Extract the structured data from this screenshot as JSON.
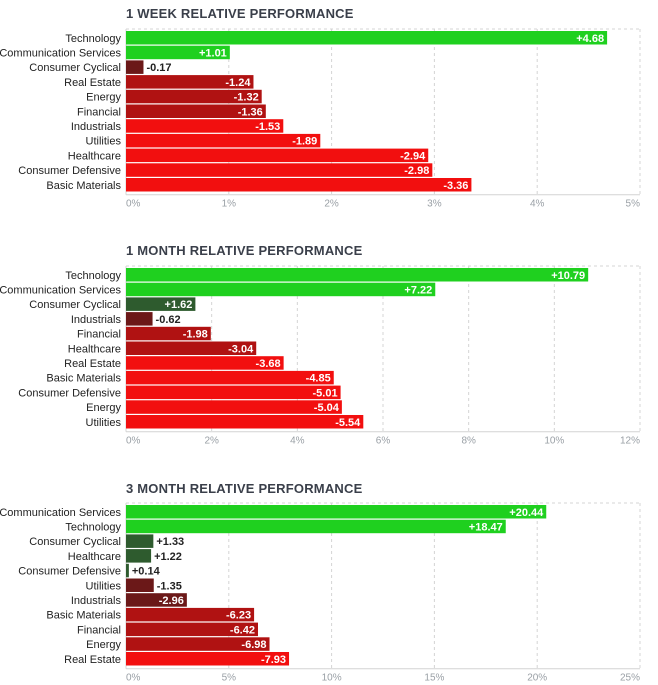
{
  "chart_data": [
    {
      "type": "bar",
      "orientation": "horizontal",
      "title": "1 WEEK RELATIVE PERFORMANCE",
      "categories": [
        "Technology",
        "Communication Services",
        "Consumer Cyclical",
        "Real Estate",
        "Energy",
        "Financial",
        "Industrials",
        "Utilities",
        "Healthcare",
        "Consumer Defensive",
        "Basic Materials"
      ],
      "values": [
        4.68,
        1.01,
        -0.17,
        -1.24,
        -1.32,
        -1.36,
        -1.53,
        -1.89,
        -2.94,
        -2.98,
        -3.36
      ],
      "value_labels": [
        "+4.68",
        "+1.01",
        "-0.17",
        "-1.24",
        "-1.32",
        "-1.36",
        "-1.53",
        "-1.89",
        "-2.94",
        "-2.98",
        "-3.36"
      ],
      "xlim": [
        0,
        5
      ],
      "ticks": [
        "0%",
        "1%",
        "2%",
        "3%",
        "4%",
        "5%"
      ],
      "grid": true
    },
    {
      "type": "bar",
      "orientation": "horizontal",
      "title": "1 MONTH RELATIVE PERFORMANCE",
      "categories": [
        "Technology",
        "Communication Services",
        "Consumer Cyclical",
        "Industrials",
        "Financial",
        "Healthcare",
        "Real Estate",
        "Basic Materials",
        "Consumer Defensive",
        "Energy",
        "Utilities"
      ],
      "values": [
        10.79,
        7.22,
        1.62,
        -0.62,
        -1.98,
        -3.04,
        -3.68,
        -4.85,
        -5.01,
        -5.04,
        -5.54
      ],
      "value_labels": [
        "+10.79",
        "+7.22",
        "+1.62",
        "-0.62",
        "-1.98",
        "-3.04",
        "-3.68",
        "-4.85",
        "-5.01",
        "-5.04",
        "-5.54"
      ],
      "xlim": [
        0,
        12
      ],
      "ticks": [
        "0%",
        "2%",
        "4%",
        "6%",
        "8%",
        "10%",
        "12%"
      ],
      "grid": true
    },
    {
      "type": "bar",
      "orientation": "horizontal",
      "title": "3 MONTH RELATIVE PERFORMANCE",
      "categories": [
        "Communication Services",
        "Technology",
        "Consumer Cyclical",
        "Healthcare",
        "Consumer Defensive",
        "Utilities",
        "Industrials",
        "Basic Materials",
        "Financial",
        "Energy",
        "Real Estate"
      ],
      "values": [
        20.44,
        18.47,
        1.33,
        1.22,
        0.14,
        -1.35,
        -2.96,
        -6.23,
        -6.42,
        -6.98,
        -7.93
      ],
      "value_labels": [
        "+20.44",
        "+18.47",
        "+1.33",
        "+1.22",
        "+0.14",
        "-1.35",
        "-2.96",
        "-6.23",
        "-6.42",
        "-6.98",
        "-7.93"
      ],
      "xlim": [
        0,
        25
      ],
      "ticks": [
        "0%",
        "5%",
        "10%",
        "15%",
        "20%",
        "25%"
      ],
      "grid": true
    }
  ],
  "colors": {
    "strong_positive": "#1fd01f",
    "mild_positive": "#2e5b2e",
    "mild_negative": "#6b1818",
    "medium_negative": "#b01212",
    "strong_negative": "#f20f0f",
    "grid": "#d4d4d4",
    "tick_text": "#9aa0a6",
    "title_text": "#3a3f4a"
  }
}
